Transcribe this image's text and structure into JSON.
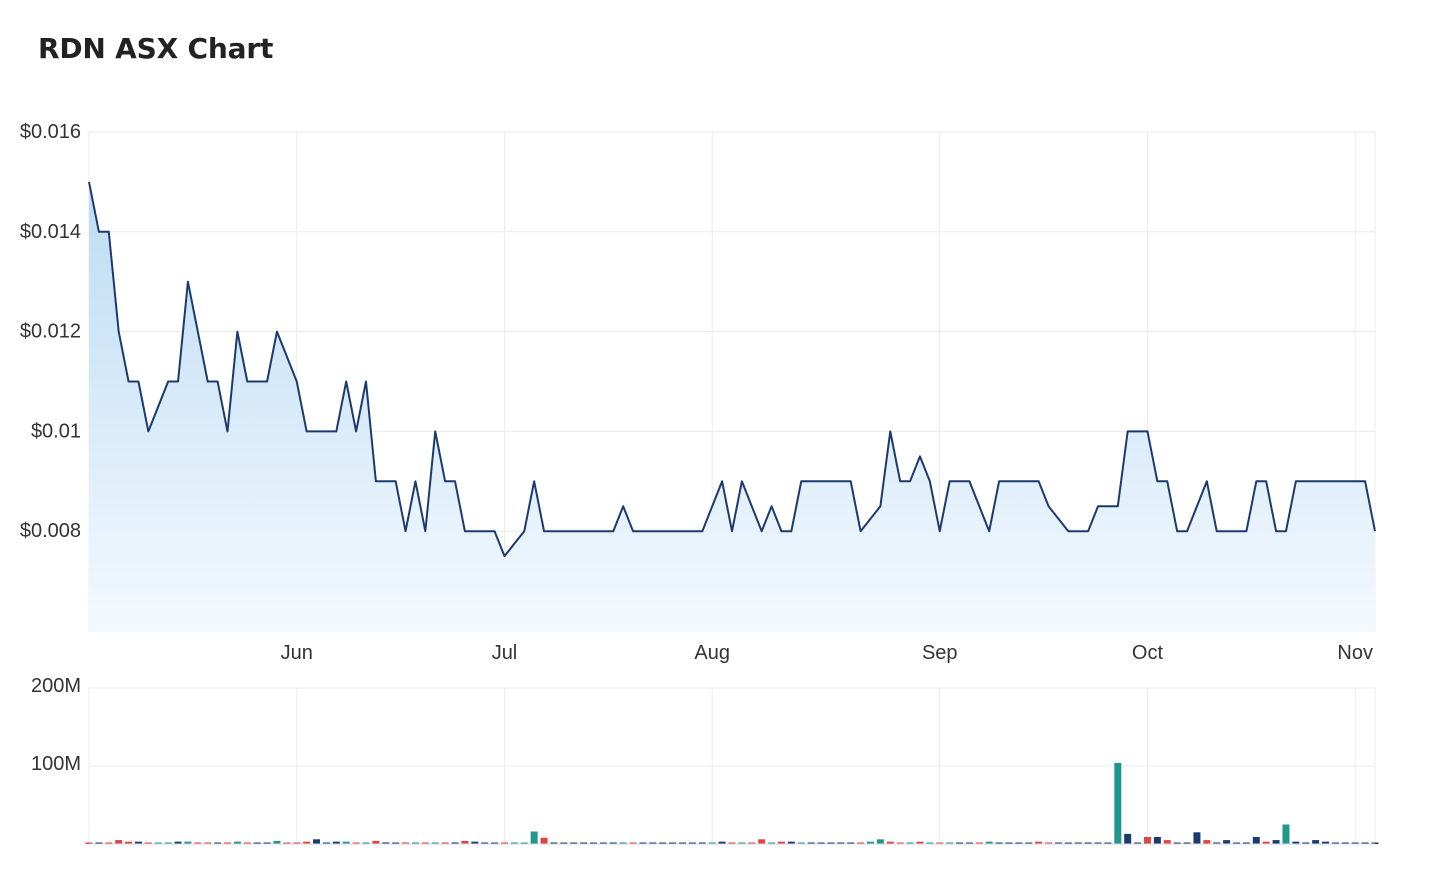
{
  "header": {
    "title": "RDN ASX Chart"
  },
  "colors": {
    "price_line": "#1c3a6e",
    "area_top": "#bcdcf4",
    "area_bottom": "#f4f9fe",
    "grid": "#ececec",
    "volume_up": "#23968c",
    "volume_down": "#e0453f",
    "volume_flat": "#1c3a6e"
  },
  "chart_data": [
    {
      "type": "area",
      "title": "RDN ASX Chart",
      "xlabel": "",
      "ylabel": "",
      "grid": true,
      "x_ticks": [
        {
          "label": "Jun",
          "index": 21
        },
        {
          "label": "Jul",
          "index": 42
        },
        {
          "label": "Aug",
          "index": 63
        },
        {
          "label": "Sep",
          "index": 86
        },
        {
          "label": "Oct",
          "index": 107
        },
        {
          "label": "Nov",
          "index": 128
        }
      ],
      "y_ticks": [
        {
          "label": "$0.016",
          "value": 0.016
        },
        {
          "label": "$0.014",
          "value": 0.014
        },
        {
          "label": "$0.012",
          "value": 0.012
        },
        {
          "label": "$0.01",
          "value": 0.01
        },
        {
          "label": "$0.008",
          "value": 0.008
        }
      ],
      "ylim": [
        0.006,
        0.016
      ],
      "n_points": 131,
      "series": [
        {
          "values": [
            0.015,
            0.014,
            0.014,
            0.012,
            0.011,
            0.011,
            0.01,
            0.0105,
            0.011,
            0.011,
            0.013,
            0.012,
            0.011,
            0.011,
            0.01,
            0.012,
            0.011,
            0.011,
            0.011,
            0.012,
            0.0115,
            0.011,
            0.01,
            0.01,
            0.01,
            0.01,
            0.011,
            0.01,
            0.011,
            0.009,
            0.009,
            0.009,
            0.008,
            0.009,
            0.008,
            0.01,
            0.009,
            0.009,
            0.008,
            0.008,
            0.008,
            0.008,
            0.0075,
            0.00775,
            0.008,
            0.009,
            0.008,
            0.008,
            0.008,
            0.008,
            0.008,
            0.008,
            0.008,
            0.008,
            0.0085,
            0.008,
            0.008,
            0.008,
            0.008,
            0.008,
            0.008,
            0.008,
            0.008,
            0.0085,
            0.009,
            0.008,
            0.009,
            0.0085,
            0.008,
            0.0085,
            0.008,
            0.008,
            0.009,
            0.009,
            0.009,
            0.009,
            0.009,
            0.009,
            0.008,
            0.00825,
            0.0085,
            0.01,
            0.009,
            0.009,
            0.0095,
            0.009,
            0.008,
            0.009,
            0.009,
            0.009,
            0.0085,
            0.008,
            0.009,
            0.009,
            0.009,
            0.009,
            0.009,
            0.0085,
            0.00825,
            0.008,
            0.008,
            0.008,
            0.0085,
            0.0085,
            0.0085,
            0.01,
            0.01,
            0.01,
            0.009,
            0.009,
            0.008,
            0.008,
            0.0085,
            0.009,
            0.008,
            0.008,
            0.008,
            0.008,
            0.009,
            0.009,
            0.008,
            0.008,
            0.009,
            0.009,
            0.009,
            0.009,
            0.009,
            0.009,
            0.009,
            0.009,
            0.008
          ]
        }
      ]
    },
    {
      "type": "bar",
      "title": "",
      "xlabel": "",
      "ylabel": "",
      "grid": true,
      "y_ticks": [
        {
          "label": "200M",
          "value": 200
        },
        {
          "label": "100M",
          "value": 100
        }
      ],
      "ylim": [
        0,
        200
      ],
      "unit_multiplier": 1000000,
      "n_points": 131,
      "volume_bars": [
        {
          "i": 0,
          "v": 1,
          "c": "down"
        },
        {
          "i": 1,
          "v": 1,
          "c": "flat"
        },
        {
          "i": 2,
          "v": 1,
          "c": "down"
        },
        {
          "i": 3,
          "v": 5,
          "c": "down"
        },
        {
          "i": 4,
          "v": 3,
          "c": "down"
        },
        {
          "i": 5,
          "v": 3,
          "c": "flat"
        },
        {
          "i": 6,
          "v": 1,
          "c": "down"
        },
        {
          "i": 7,
          "v": 1,
          "c": "up"
        },
        {
          "i": 8,
          "v": 1,
          "c": "up"
        },
        {
          "i": 9,
          "v": 3,
          "c": "flat"
        },
        {
          "i": 10,
          "v": 3,
          "c": "up"
        },
        {
          "i": 11,
          "v": 1,
          "c": "down"
        },
        {
          "i": 12,
          "v": 1,
          "c": "down"
        },
        {
          "i": 13,
          "v": 1,
          "c": "flat"
        },
        {
          "i": 14,
          "v": 1,
          "c": "down"
        },
        {
          "i": 15,
          "v": 3,
          "c": "up"
        },
        {
          "i": 16,
          "v": 1,
          "c": "down"
        },
        {
          "i": 17,
          "v": 1,
          "c": "flat"
        },
        {
          "i": 18,
          "v": 1,
          "c": "flat"
        },
        {
          "i": 19,
          "v": 4,
          "c": "up"
        },
        {
          "i": 20,
          "v": 1,
          "c": "down"
        },
        {
          "i": 21,
          "v": 1,
          "c": "down"
        },
        {
          "i": 22,
          "v": 3,
          "c": "down"
        },
        {
          "i": 23,
          "v": 6,
          "c": "flat"
        },
        {
          "i": 24,
          "v": 1,
          "c": "flat"
        },
        {
          "i": 25,
          "v": 3,
          "c": "flat"
        },
        {
          "i": 26,
          "v": 3,
          "c": "up"
        },
        {
          "i": 27,
          "v": 1,
          "c": "down"
        },
        {
          "i": 28,
          "v": 1,
          "c": "up"
        },
        {
          "i": 29,
          "v": 4,
          "c": "down"
        },
        {
          "i": 30,
          "v": 2,
          "c": "flat"
        },
        {
          "i": 31,
          "v": 1,
          "c": "flat"
        },
        {
          "i": 32,
          "v": 2,
          "c": "down"
        },
        {
          "i": 33,
          "v": 1,
          "c": "up"
        },
        {
          "i": 34,
          "v": 1,
          "c": "down"
        },
        {
          "i": 35,
          "v": 1,
          "c": "up"
        },
        {
          "i": 36,
          "v": 1,
          "c": "down"
        },
        {
          "i": 37,
          "v": 2,
          "c": "flat"
        },
        {
          "i": 38,
          "v": 4,
          "c": "down"
        },
        {
          "i": 39,
          "v": 3,
          "c": "flat"
        },
        {
          "i": 40,
          "v": 1,
          "c": "flat"
        },
        {
          "i": 41,
          "v": 1,
          "c": "flat"
        },
        {
          "i": 42,
          "v": 1,
          "c": "down"
        },
        {
          "i": 43,
          "v": 1,
          "c": "up"
        },
        {
          "i": 44,
          "v": 1,
          "c": "up"
        },
        {
          "i": 45,
          "v": 16,
          "c": "up"
        },
        {
          "i": 46,
          "v": 8,
          "c": "down"
        },
        {
          "i": 47,
          "v": 1,
          "c": "flat"
        },
        {
          "i": 48,
          "v": 1,
          "c": "flat"
        },
        {
          "i": 49,
          "v": 1,
          "c": "flat"
        },
        {
          "i": 50,
          "v": 1,
          "c": "flat"
        },
        {
          "i": 51,
          "v": 1,
          "c": "flat"
        },
        {
          "i": 52,
          "v": 1,
          "c": "flat"
        },
        {
          "i": 53,
          "v": 1,
          "c": "flat"
        },
        {
          "i": 54,
          "v": 1,
          "c": "up"
        },
        {
          "i": 55,
          "v": 1,
          "c": "down"
        },
        {
          "i": 56,
          "v": 1,
          "c": "flat"
        },
        {
          "i": 57,
          "v": 1,
          "c": "flat"
        },
        {
          "i": 58,
          "v": 1,
          "c": "flat"
        },
        {
          "i": 59,
          "v": 1,
          "c": "flat"
        },
        {
          "i": 60,
          "v": 1,
          "c": "flat"
        },
        {
          "i": 61,
          "v": 1,
          "c": "flat"
        },
        {
          "i": 62,
          "v": 1,
          "c": "flat"
        },
        {
          "i": 63,
          "v": 1,
          "c": "up"
        },
        {
          "i": 64,
          "v": 3,
          "c": "flat"
        },
        {
          "i": 65,
          "v": 1,
          "c": "down"
        },
        {
          "i": 66,
          "v": 1,
          "c": "up"
        },
        {
          "i": 67,
          "v": 1,
          "c": "down"
        },
        {
          "i": 68,
          "v": 6,
          "c": "down"
        },
        {
          "i": 69,
          "v": 1,
          "c": "up"
        },
        {
          "i": 70,
          "v": 3,
          "c": "down"
        },
        {
          "i": 71,
          "v": 3,
          "c": "flat"
        },
        {
          "i": 72,
          "v": 1,
          "c": "up"
        },
        {
          "i": 73,
          "v": 1,
          "c": "flat"
        },
        {
          "i": 74,
          "v": 1,
          "c": "flat"
        },
        {
          "i": 75,
          "v": 1,
          "c": "flat"
        },
        {
          "i": 76,
          "v": 1,
          "c": "flat"
        },
        {
          "i": 77,
          "v": 1,
          "c": "flat"
        },
        {
          "i": 78,
          "v": 1,
          "c": "down"
        },
        {
          "i": 79,
          "v": 3,
          "c": "up"
        },
        {
          "i": 80,
          "v": 6,
          "c": "up"
        },
        {
          "i": 81,
          "v": 3,
          "c": "down"
        },
        {
          "i": 82,
          "v": 1,
          "c": "down"
        },
        {
          "i": 83,
          "v": 1,
          "c": "up"
        },
        {
          "i": 84,
          "v": 3,
          "c": "down"
        },
        {
          "i": 85,
          "v": 1,
          "c": "up"
        },
        {
          "i": 86,
          "v": 1,
          "c": "down"
        },
        {
          "i": 87,
          "v": 1,
          "c": "up"
        },
        {
          "i": 88,
          "v": 1,
          "c": "flat"
        },
        {
          "i": 89,
          "v": 1,
          "c": "flat"
        },
        {
          "i": 90,
          "v": 1,
          "c": "down"
        },
        {
          "i": 91,
          "v": 3,
          "c": "up"
        },
        {
          "i": 92,
          "v": 1,
          "c": "flat"
        },
        {
          "i": 93,
          "v": 1,
          "c": "flat"
        },
        {
          "i": 94,
          "v": 1,
          "c": "flat"
        },
        {
          "i": 95,
          "v": 1,
          "c": "flat"
        },
        {
          "i": 96,
          "v": 3,
          "c": "down"
        },
        {
          "i": 97,
          "v": 1,
          "c": "down"
        },
        {
          "i": 98,
          "v": 1,
          "c": "flat"
        },
        {
          "i": 99,
          "v": 1,
          "c": "flat"
        },
        {
          "i": 100,
          "v": 1,
          "c": "flat"
        },
        {
          "i": 101,
          "v": 1,
          "c": "flat"
        },
        {
          "i": 102,
          "v": 1,
          "c": "flat"
        },
        {
          "i": 103,
          "v": 1,
          "c": "flat"
        },
        {
          "i": 104,
          "v": 104,
          "c": "up"
        },
        {
          "i": 105,
          "v": 13,
          "c": "flat"
        },
        {
          "i": 106,
          "v": 1,
          "c": "flat"
        },
        {
          "i": 107,
          "v": 9,
          "c": "down"
        },
        {
          "i": 108,
          "v": 9,
          "c": "flat"
        },
        {
          "i": 109,
          "v": 5,
          "c": "down"
        },
        {
          "i": 110,
          "v": 1,
          "c": "flat"
        },
        {
          "i": 111,
          "v": 1,
          "c": "flat"
        },
        {
          "i": 112,
          "v": 15,
          "c": "flat"
        },
        {
          "i": 113,
          "v": 5,
          "c": "down"
        },
        {
          "i": 114,
          "v": 1,
          "c": "flat"
        },
        {
          "i": 115,
          "v": 5,
          "c": "flat"
        },
        {
          "i": 116,
          "v": 1,
          "c": "flat"
        },
        {
          "i": 117,
          "v": 1,
          "c": "flat"
        },
        {
          "i": 118,
          "v": 9,
          "c": "flat"
        },
        {
          "i": 119,
          "v": 3,
          "c": "down"
        },
        {
          "i": 120,
          "v": 5,
          "c": "flat"
        },
        {
          "i": 121,
          "v": 25,
          "c": "up"
        },
        {
          "i": 122,
          "v": 3,
          "c": "flat"
        },
        {
          "i": 123,
          "v": 1,
          "c": "flat"
        },
        {
          "i": 124,
          "v": 5,
          "c": "flat"
        },
        {
          "i": 125,
          "v": 3,
          "c": "flat"
        },
        {
          "i": 126,
          "v": 1,
          "c": "flat"
        },
        {
          "i": 127,
          "v": 1,
          "c": "flat"
        },
        {
          "i": 128,
          "v": 1,
          "c": "flat"
        },
        {
          "i": 129,
          "v": 1,
          "c": "flat"
        },
        {
          "i": 130,
          "v": 1,
          "c": "flat"
        }
      ]
    }
  ]
}
